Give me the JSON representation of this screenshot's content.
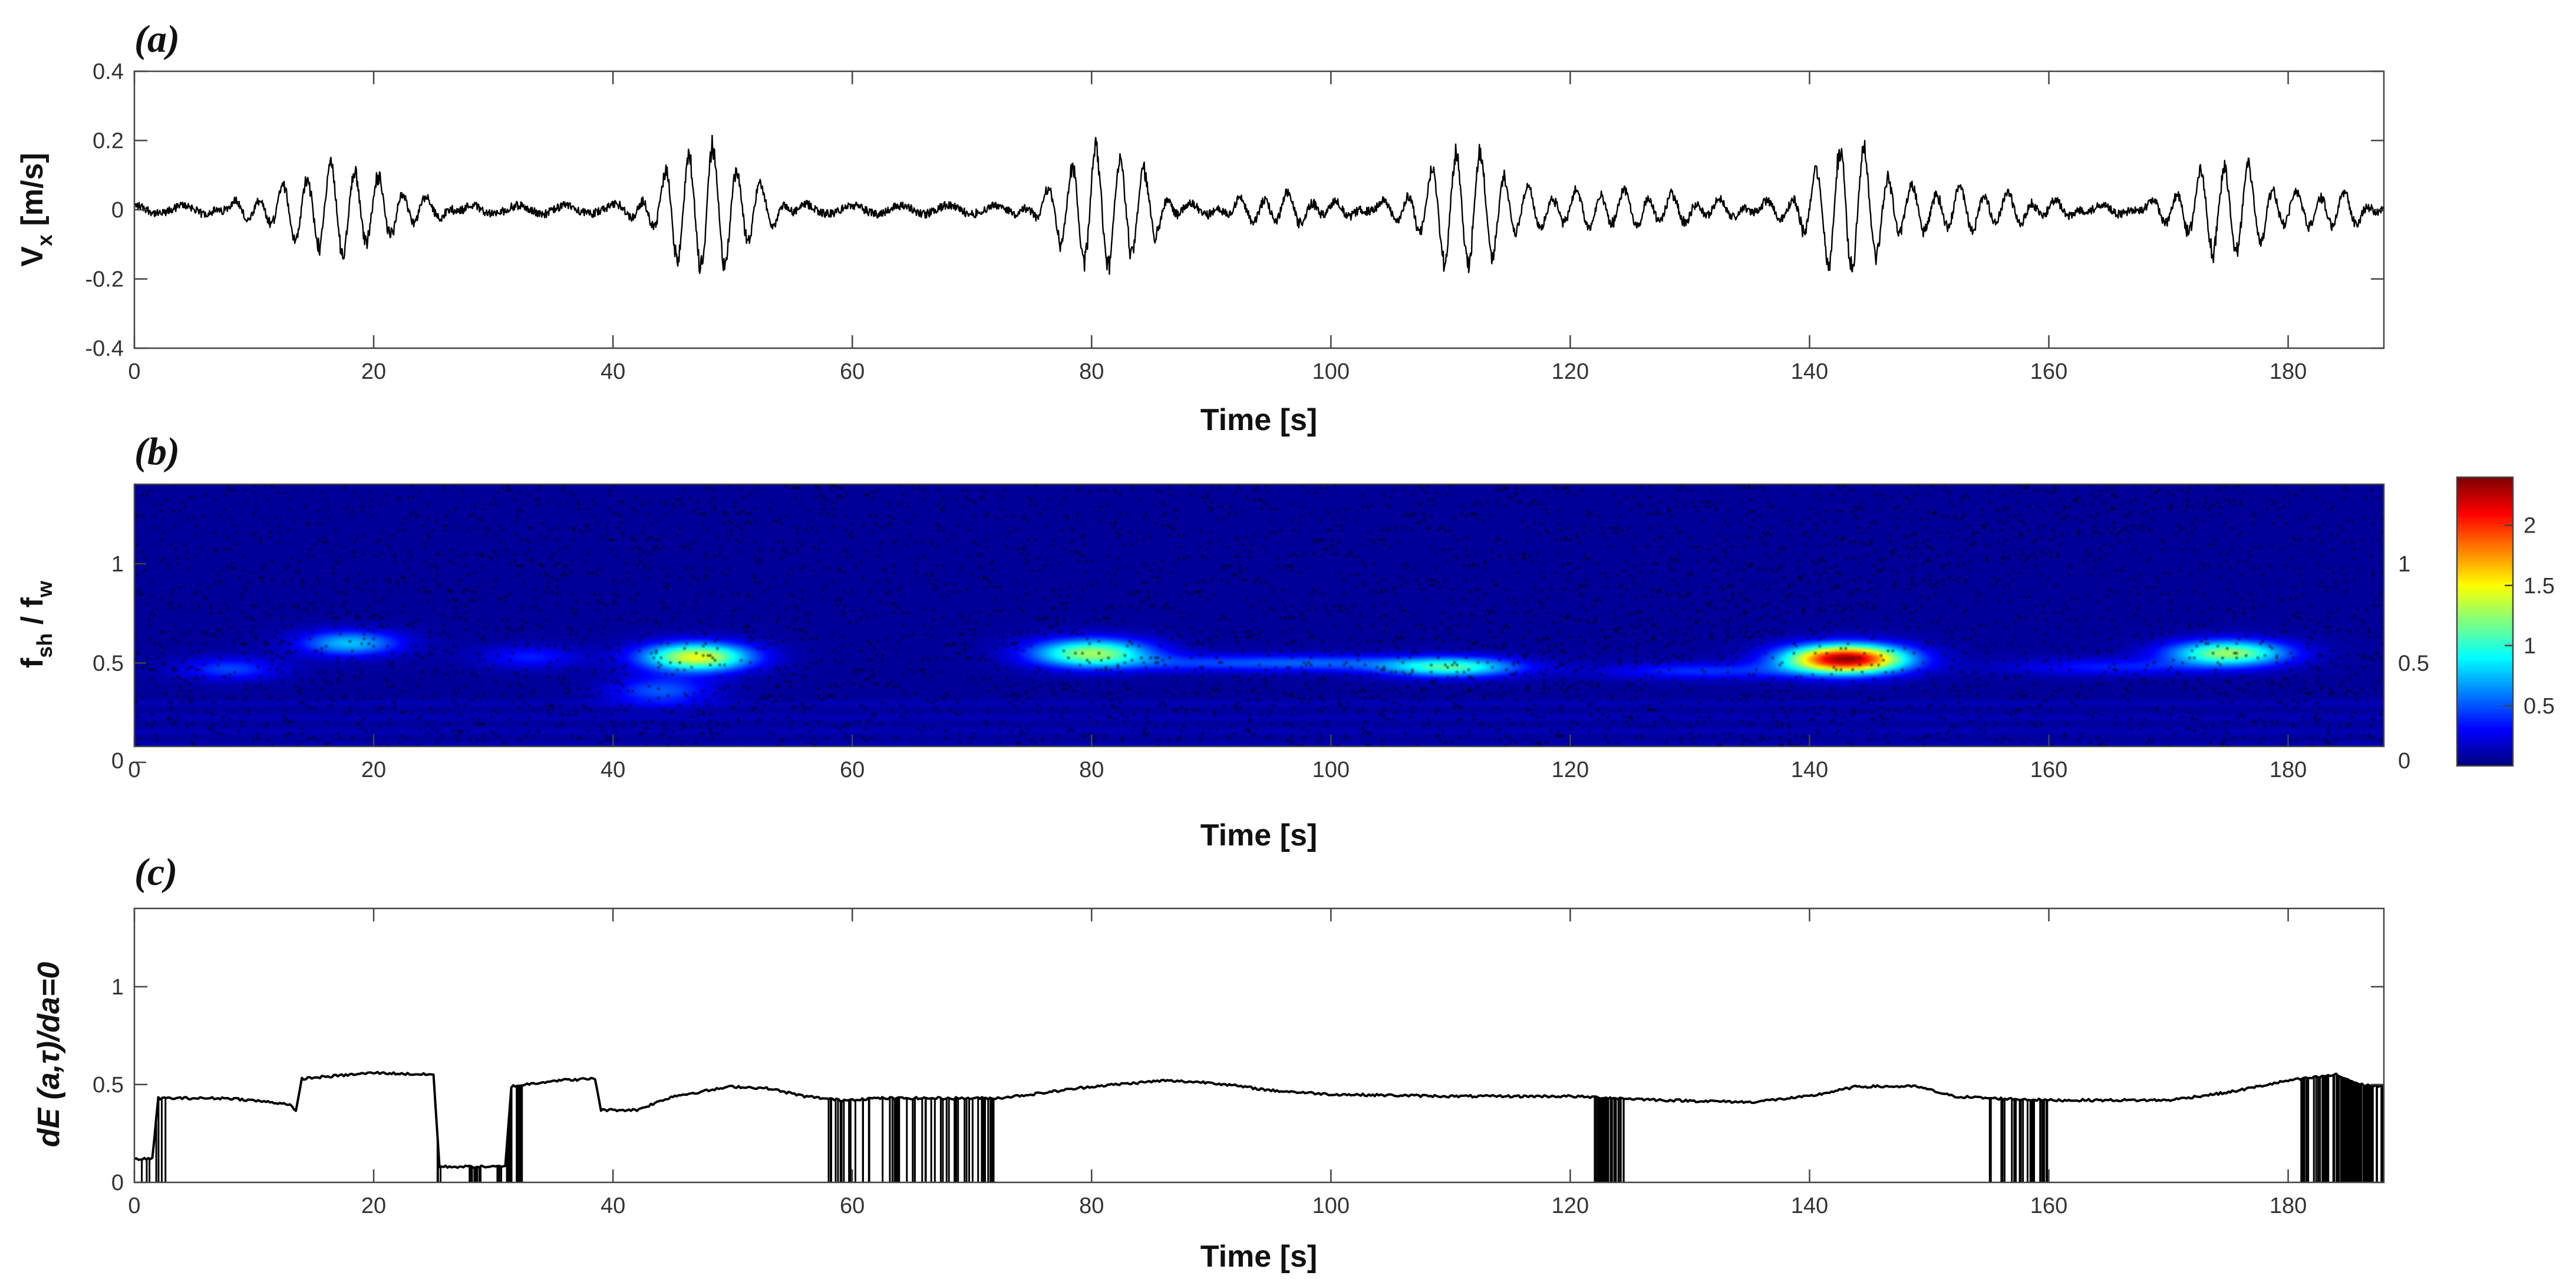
{
  "chart_data": [
    {
      "id": "a",
      "type": "line",
      "panel_label": "(a)",
      "xlabel": "Time [s]",
      "ylabel": "V",
      "ylabel_sub": "x",
      "ylabel_unit": " [m/s]",
      "xlim": [
        0,
        188
      ],
      "ylim": [
        -0.4,
        0.4
      ],
      "xticks": [
        0,
        20,
        40,
        60,
        80,
        100,
        120,
        140,
        160,
        180
      ],
      "yticks": [
        -0.4,
        -0.2,
        0,
        0.2,
        0.4
      ],
      "ytick_labels": [
        "-0.4",
        "-0.2",
        "0",
        "0.2",
        "0.4"
      ],
      "wave_period_s": 2.0,
      "background_noise": 0.012,
      "bursts": [
        {
          "center": 17,
          "width": 6,
          "amp": 0.13
        },
        {
          "center": 47,
          "width": 3.5,
          "amp": 0.18
        },
        {
          "center": 51,
          "width": 3,
          "amp": 0.07
        },
        {
          "center": 80,
          "width": 3.5,
          "amp": 0.17
        },
        {
          "center": 84,
          "width": 2.5,
          "amp": 0.08
        },
        {
          "center": 96,
          "width": 5,
          "amp": 0.04
        },
        {
          "center": 111,
          "width": 4,
          "amp": 0.17
        },
        {
          "center": 123,
          "width": 10,
          "amp": 0.05
        },
        {
          "center": 143,
          "width": 3.5,
          "amp": 0.18
        },
        {
          "center": 152,
          "width": 8,
          "amp": 0.06
        },
        {
          "center": 175,
          "width": 4.5,
          "amp": 0.14
        },
        {
          "center": 184,
          "width": 3,
          "amp": 0.05
        }
      ]
    },
    {
      "id": "b",
      "type": "heatmap",
      "panel_label": "(b)",
      "xlabel": "Time [s]",
      "ylabel": "f",
      "ylabel_sub": "sh",
      "ylabel_mid": " / f",
      "ylabel_sub2": "w",
      "xlim": [
        0,
        188
      ],
      "ylim": [
        0,
        1.4
      ],
      "plot_y_range": [
        0.08,
        1.4
      ],
      "xticks": [
        0,
        20,
        40,
        60,
        80,
        100,
        120,
        140,
        160,
        180
      ],
      "yticks": [
        0,
        0.5,
        1
      ],
      "ytick_labels": [
        "0",
        "0.5",
        "1"
      ],
      "colormap": "jet",
      "colorbar": {
        "min": 0,
        "max": 2.4,
        "ticks": [
          0.5,
          1,
          1.5,
          2
        ],
        "tick_labels": [
          "0.5",
          "1",
          "1.5",
          "2"
        ]
      },
      "blobs": [
        {
          "t": 18,
          "f": 0.6,
          "st": 3,
          "sf": 0.045,
          "amp": 0.7
        },
        {
          "t": 8,
          "f": 0.47,
          "st": 3,
          "sf": 0.04,
          "amp": 0.4
        },
        {
          "t": 33,
          "f": 0.53,
          "st": 3,
          "sf": 0.04,
          "amp": 0.3
        },
        {
          "t": 47,
          "f": 0.53,
          "st": 3.2,
          "sf": 0.05,
          "amp": 1.4
        },
        {
          "t": 44,
          "f": 0.36,
          "st": 3,
          "sf": 0.05,
          "amp": 0.45
        },
        {
          "t": 80,
          "f": 0.55,
          "st": 3.5,
          "sf": 0.05,
          "amp": 1.2
        },
        {
          "t": 90,
          "f": 0.5,
          "st": 6,
          "sf": 0.03,
          "amp": 0.35
        },
        {
          "t": 110,
          "f": 0.48,
          "st": 4,
          "sf": 0.035,
          "amp": 1.0
        },
        {
          "t": 100,
          "f": 0.5,
          "st": 5,
          "sf": 0.03,
          "amp": 0.35
        },
        {
          "t": 143,
          "f": 0.52,
          "st": 3.5,
          "sf": 0.05,
          "amp": 2.3
        },
        {
          "t": 131,
          "f": 0.46,
          "st": 6,
          "sf": 0.03,
          "amp": 0.35
        },
        {
          "t": 175,
          "f": 0.55,
          "st": 3.5,
          "sf": 0.045,
          "amp": 1.2
        },
        {
          "t": 165,
          "f": 0.48,
          "st": 6,
          "sf": 0.03,
          "amp": 0.3
        }
      ]
    },
    {
      "id": "c",
      "type": "line",
      "panel_label": "(c)",
      "xlabel": "Time [s]",
      "ylabel": "dE (a,τ)/da=0",
      "xlim": [
        0,
        188
      ],
      "ylim": [
        0,
        1.4
      ],
      "xticks": [
        0,
        20,
        40,
        60,
        80,
        100,
        120,
        140,
        160,
        180
      ],
      "yticks": [
        0,
        0.5,
        1
      ],
      "ytick_labels": [
        "0",
        "0.5",
        "1"
      ],
      "ridge": [
        [
          0,
          0.12
        ],
        [
          1.5,
          0.12
        ],
        [
          2,
          0.43
        ],
        [
          8,
          0.43
        ],
        [
          13,
          0.4
        ],
        [
          13.5,
          0.36
        ],
        [
          14,
          0.53
        ],
        [
          20,
          0.56
        ],
        [
          25,
          0.55
        ],
        [
          25.5,
          0.08
        ],
        [
          31,
          0.08
        ],
        [
          31.5,
          0.49
        ],
        [
          35,
          0.52
        ],
        [
          38.5,
          0.53
        ],
        [
          39,
          0.37
        ],
        [
          42,
          0.37
        ],
        [
          45,
          0.44
        ],
        [
          50,
          0.49
        ],
        [
          53,
          0.48
        ],
        [
          56,
          0.44
        ],
        [
          59,
          0.42
        ],
        [
          62,
          0.43
        ],
        [
          72,
          0.43
        ],
        [
          75,
          0.45
        ],
        [
          80,
          0.49
        ],
        [
          86,
          0.52
        ],
        [
          90,
          0.51
        ],
        [
          95,
          0.47
        ],
        [
          100,
          0.45
        ],
        [
          110,
          0.44
        ],
        [
          120,
          0.44
        ],
        [
          128,
          0.42
        ],
        [
          135,
          0.41
        ],
        [
          140,
          0.44
        ],
        [
          144,
          0.49
        ],
        [
          149,
          0.49
        ],
        [
          152,
          0.44
        ],
        [
          155,
          0.43
        ],
        [
          160,
          0.42
        ],
        [
          170,
          0.42
        ],
        [
          175,
          0.46
        ],
        [
          180,
          0.52
        ],
        [
          184,
          0.55
        ],
        [
          186,
          0.5
        ],
        [
          188,
          0.49
        ]
      ],
      "dropouts": [
        [
          0.6,
          2.8,
          0.08
        ],
        [
          24.8,
          25.6,
          0.1
        ],
        [
          28,
          29,
          0.5
        ],
        [
          30.3,
          32.5,
          0.2
        ],
        [
          58,
          72,
          0.25
        ],
        [
          122,
          124.5,
          0.5
        ],
        [
          155,
          160,
          0.25
        ],
        [
          181,
          188,
          0.5
        ]
      ]
    }
  ]
}
